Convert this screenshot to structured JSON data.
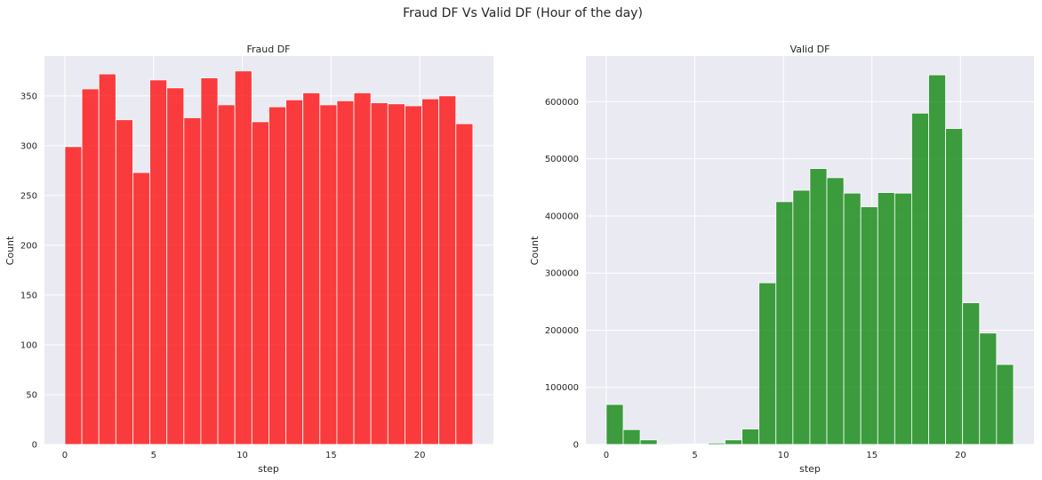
{
  "figure": {
    "suptitle": "Fraud DF Vs Valid DF (Hour of the day)",
    "background": "#eaeaf2"
  },
  "chart_data": [
    {
      "type": "bar",
      "subtype": "histogram",
      "title": "Fraud DF",
      "xlabel": "step",
      "ylabel": "Count",
      "bin_start": 0,
      "bin_width": 0.958,
      "xlim": [
        -1.15,
        24.15
      ],
      "ylim": [
        0,
        390
      ],
      "xticks": [
        0,
        5,
        10,
        15,
        20
      ],
      "yticks": [
        0,
        50,
        100,
        150,
        200,
        250,
        300,
        350
      ],
      "color": "#ff0000",
      "grid": true,
      "values": [
        299,
        357,
        372,
        326,
        273,
        366,
        358,
        328,
        368,
        341,
        375,
        324,
        339,
        346,
        353,
        341,
        345,
        353,
        343,
        342,
        340,
        347,
        350,
        322
      ]
    },
    {
      "type": "bar",
      "subtype": "histogram",
      "title": "Valid DF",
      "xlabel": "step",
      "ylabel": "Count",
      "bin_start": 0,
      "bin_width": 0.958,
      "xlim": [
        -1.15,
        24.15
      ],
      "ylim": [
        0,
        680000
      ],
      "xticks": [
        0,
        5,
        10,
        15,
        20
      ],
      "yticks": [
        0,
        100000,
        200000,
        300000,
        400000,
        500000,
        600000
      ],
      "color": "#008000",
      "grid": true,
      "values": [
        70000,
        26000,
        8000,
        1500,
        500,
        700,
        2500,
        8000,
        27000,
        283000,
        425000,
        445000,
        483000,
        467000,
        440000,
        416000,
        441000,
        440000,
        580000,
        647000,
        553000,
        248000,
        195000,
        140000
      ]
    }
  ]
}
